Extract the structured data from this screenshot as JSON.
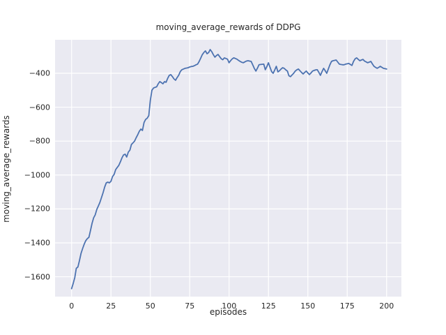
{
  "chart_data": {
    "type": "line",
    "title": "moving_average_rewards of DDPG",
    "xlabel": "episodes",
    "ylabel": "moving_average_rewards",
    "x_ticks": [
      0,
      25,
      50,
      75,
      100,
      125,
      150,
      175,
      200
    ],
    "y_ticks": [
      -400,
      -600,
      -800,
      -1000,
      -1200,
      -1400,
      -1600
    ],
    "xlim": [
      -10.5,
      209.4
    ],
    "ylim": [
      -1717,
      -202.5
    ],
    "grid": true,
    "legend": null,
    "style": {
      "figure_bg": "#ffffff",
      "plot_bg": "#eaeaf2",
      "grid_color": "#ffffff",
      "line_color": "#4c72b0",
      "text_color": "#262626"
    },
    "series": [
      {
        "name": "moving_average_rewards",
        "x_start": 0,
        "x_step": 1,
        "values": [
          -1670,
          -1640,
          -1605,
          -1550,
          -1542,
          -1505,
          -1462,
          -1433,
          -1408,
          -1387,
          -1375,
          -1367,
          -1326,
          -1285,
          -1252,
          -1235,
          -1203,
          -1182,
          -1161,
          -1132,
          -1104,
          -1071,
          -1046,
          -1042,
          -1046,
          -1037,
          -1009,
          -996,
          -968,
          -955,
          -943,
          -922,
          -898,
          -881,
          -877,
          -894,
          -865,
          -853,
          -820,
          -810,
          -800,
          -780,
          -762,
          -742,
          -729,
          -737,
          -690,
          -672,
          -665,
          -650,
          -560,
          -500,
          -487,
          -483,
          -480,
          -462,
          -449,
          -455,
          -462,
          -449,
          -453,
          -430,
          -412,
          -408,
          -420,
          -433,
          -441,
          -425,
          -412,
          -390,
          -379,
          -375,
          -371,
          -369,
          -367,
          -363,
          -360,
          -359,
          -355,
          -350,
          -346,
          -330,
          -310,
          -290,
          -277,
          -268,
          -285,
          -278,
          -260,
          -273,
          -290,
          -305,
          -295,
          -289,
          -302,
          -314,
          -320,
          -309,
          -313,
          -317,
          -338,
          -325,
          -315,
          -309,
          -313,
          -317,
          -324,
          -330,
          -335,
          -338,
          -333,
          -328,
          -326,
          -328,
          -330,
          -350,
          -371,
          -387,
          -370,
          -350,
          -348,
          -347,
          -346,
          -379,
          -360,
          -338,
          -365,
          -390,
          -400,
          -380,
          -359,
          -392,
          -385,
          -375,
          -367,
          -371,
          -380,
          -387,
          -415,
          -420,
          -410,
          -400,
          -387,
          -380,
          -375,
          -385,
          -395,
          -404,
          -395,
          -387,
          -398,
          -408,
          -398,
          -387,
          -383,
          -380,
          -379,
          -395,
          -412,
          -390,
          -371,
          -385,
          -400,
          -375,
          -350,
          -330,
          -326,
          -324,
          -322,
          -334,
          -346,
          -348,
          -350,
          -350,
          -346,
          -344,
          -342,
          -348,
          -354,
          -330,
          -315,
          -309,
          -318,
          -326,
          -322,
          -318,
          -328,
          -333,
          -338,
          -334,
          -330,
          -345,
          -359,
          -365,
          -371,
          -365,
          -359,
          -365,
          -371,
          -373,
          -375
        ]
      }
    ]
  }
}
